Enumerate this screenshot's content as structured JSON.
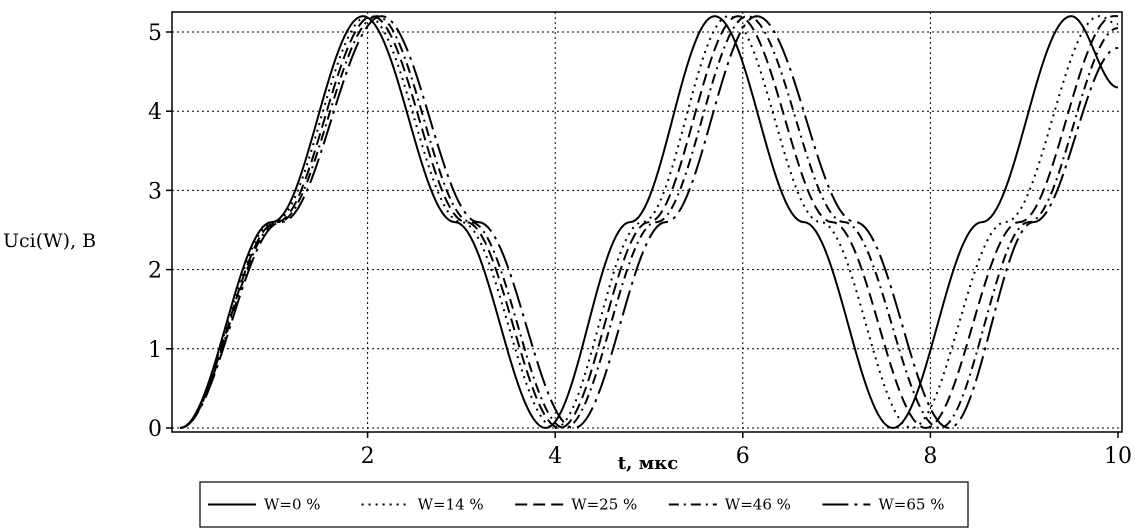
{
  "chart_data": {
    "type": "line",
    "title": "",
    "xlabel": "t, мкс",
    "ylabel": "Uci(W), B",
    "xlim": [
      0,
      10
    ],
    "ylim": [
      0,
      5.2
    ],
    "xticks": [
      2,
      4,
      6,
      8,
      10
    ],
    "yticks": [
      0,
      1,
      2,
      3,
      4,
      5
    ],
    "grid": true,
    "legend_position": "bottom",
    "series": [
      {
        "name": "W=0 %",
        "style": "solid",
        "color": "#000000",
        "x": [
          0.0,
          0.98,
          1.95,
          2.93,
          3.9,
          4.8,
          5.7,
          6.65,
          7.6,
          8.55,
          9.5,
          10.0
        ],
        "y": [
          0.0,
          2.6,
          5.2,
          2.6,
          0.0,
          2.6,
          5.2,
          2.6,
          0.0,
          2.6,
          5.2,
          4.3
        ]
      },
      {
        "name": "W=14 %",
        "style": "dotted",
        "color": "#000000",
        "x": [
          0.0,
          1.0,
          2.0,
          3.0,
          4.0,
          4.93,
          5.85,
          6.83,
          7.8,
          8.8,
          9.8,
          10.0
        ],
        "y": [
          0.0,
          2.6,
          5.2,
          2.6,
          0.0,
          2.6,
          5.2,
          2.6,
          0.0,
          2.6,
          5.2,
          5.1
        ]
      },
      {
        "name": "W=25 %",
        "style": "dashed",
        "color": "#000000",
        "x": [
          0.0,
          1.03,
          2.05,
          3.05,
          4.05,
          5.0,
          5.95,
          6.95,
          7.95,
          8.95,
          9.95,
          10.0
        ],
        "y": [
          0.0,
          2.6,
          5.2,
          2.6,
          0.0,
          2.6,
          5.2,
          2.6,
          0.0,
          2.6,
          5.2,
          5.2
        ]
      },
      {
        "name": "W=46 %",
        "style": "dashdot",
        "color": "#000000",
        "x": [
          0.0,
          1.05,
          2.1,
          3.1,
          4.1,
          5.08,
          6.05,
          7.08,
          8.1,
          9.05,
          10.0
        ],
        "y": [
          0.0,
          2.6,
          5.2,
          2.6,
          0.0,
          2.6,
          5.2,
          2.6,
          0.0,
          2.6,
          5.05
        ]
      },
      {
        "name": "W=65 %",
        "style": "longdash",
        "color": "#000000",
        "x": [
          0.0,
          1.08,
          2.15,
          3.18,
          4.2,
          5.18,
          6.15,
          7.2,
          8.2,
          9.1,
          10.0
        ],
        "y": [
          0.0,
          2.6,
          5.2,
          2.6,
          0.0,
          2.6,
          5.2,
          2.6,
          0.0,
          2.6,
          4.8
        ]
      }
    ]
  }
}
